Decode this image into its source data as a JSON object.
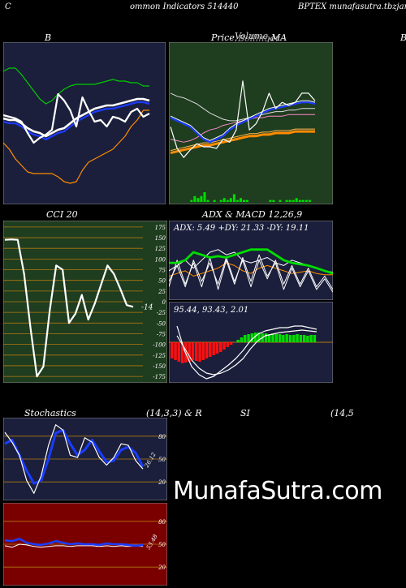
{
  "header": {
    "left": "C",
    "center": "ommon  Indicators 514440",
    "right": "BPTEX  munafasutra.tbzjar.com"
  },
  "titles": {
    "bollinger": "B",
    "price": "Price,",
    "price_overlap": "Volume,",
    "price_overlap2": "Bollinger",
    "ma": "MA",
    "cut_right": "B",
    "cci": "CCI 20",
    "adx_macd": "ADX  & MACD 12,26,9",
    "stoch": "Stochastics",
    "stoch_params": "(14,3,3) & R",
    "rsi": "SI",
    "rsi_params": "(14,5"
  },
  "watermark": "MunafaSutra.com",
  "colors": {
    "bg": "#000000",
    "navy_panel": "#1b1f3b",
    "green_panel": "#1f3d1f",
    "red_panel": "#7a0000",
    "orange": "#ff8c00",
    "blue": "#1a3cff",
    "green": "#00dd00",
    "white": "#ffffff"
  },
  "chart_data": [
    {
      "type": "line",
      "name": "bollinger",
      "series": [
        {
          "values": [
            5,
            4,
            3,
            1,
            -6,
            -12,
            -9,
            -7,
            -4,
            18,
            14,
            8,
            -2,
            16,
            8,
            1,
            2,
            -2,
            4,
            3,
            1,
            7,
            9,
            4,
            6
          ]
        },
        {
          "values": [
            1,
            0,
            0,
            -2,
            -5,
            -7,
            -8,
            -10,
            -8,
            -6,
            -5,
            -2,
            1,
            3,
            5,
            7,
            8,
            9,
            9,
            10,
            11,
            12,
            13,
            13,
            12
          ]
        },
        {
          "values": [
            3,
            2,
            2,
            0,
            -3,
            -5,
            -6,
            -8,
            -6,
            -4,
            -3,
            0,
            3,
            5,
            7,
            9,
            10,
            11,
            11,
            12,
            13,
            14,
            15,
            15,
            14
          ]
        },
        {
          "values": [
            32,
            34,
            34,
            30,
            25,
            20,
            15,
            12,
            14,
            18,
            21,
            23,
            24,
            24,
            24,
            24,
            25,
            26,
            27,
            26,
            26,
            25,
            25,
            23,
            23
          ]
        },
        {
          "values": [
            -12,
            -16,
            -22,
            -26,
            -30,
            -31,
            -31,
            -31,
            -31,
            -33,
            -36,
            -37,
            -36,
            -29,
            -24,
            -22,
            -20,
            -18,
            -16,
            -12,
            -8,
            -2,
            2,
            8,
            8
          ]
        }
      ]
    },
    {
      "type": "line",
      "name": "price_ma",
      "series": [
        {
          "values": [
            30,
            16,
            10,
            15,
            19,
            17,
            17,
            16,
            22,
            20,
            28,
            60,
            28,
            32,
            40,
            52,
            42,
            46,
            44,
            46,
            52,
            52,
            47
          ]
        },
        {
          "values": [
            36,
            34,
            32,
            30,
            26,
            22,
            20,
            22,
            24,
            28,
            31,
            33,
            35,
            37,
            39,
            41,
            42,
            43,
            44,
            45,
            46,
            46,
            45
          ]
        },
        {
          "values": [
            36,
            34,
            32,
            30,
            26,
            22,
            20,
            22,
            24,
            28,
            31,
            33,
            35,
            37,
            39,
            41,
            42,
            43,
            44,
            45,
            46,
            46,
            45
          ]
        },
        {
          "values": [
            52,
            50,
            49,
            47,
            45,
            42,
            39,
            37,
            35,
            34,
            34,
            35,
            36,
            37,
            38,
            39,
            40,
            40,
            41,
            41,
            42,
            42,
            42
          ]
        },
        {
          "values": [
            13,
            14,
            15,
            16,
            17,
            18,
            18,
            19,
            20,
            21,
            22,
            23,
            24,
            24,
            25,
            25,
            26,
            26,
            26,
            27,
            27,
            27,
            27
          ]
        },
        {
          "values": [
            22,
            21,
            20,
            21,
            23,
            26,
            28,
            29,
            31,
            32,
            33,
            34,
            35,
            36,
            36,
            37,
            37,
            37,
            38,
            38,
            38,
            38,
            38
          ]
        }
      ],
      "volume": [
        0,
        0,
        0,
        0,
        0,
        0,
        1,
        3,
        2,
        3,
        5,
        1,
        0,
        1,
        0,
        1,
        2,
        1,
        2,
        4,
        1,
        2,
        1,
        1,
        0,
        0,
        0,
        0,
        0,
        0,
        1,
        1,
        0,
        1,
        0,
        1,
        1,
        1,
        2,
        1,
        1,
        1,
        1,
        0
      ]
    },
    {
      "type": "line",
      "name": "cci",
      "y_ticks": [
        175,
        150,
        125,
        100,
        75,
        50,
        25,
        0,
        -25,
        -50,
        -75,
        -100,
        -125,
        -150,
        -175
      ],
      "ylim": [
        -190,
        190
      ],
      "values": [
        145,
        146,
        145,
        65,
        -62,
        -175,
        -152,
        -20,
        85,
        75,
        -50,
        -28,
        16,
        -42,
        -5,
        40,
        85,
        65,
        30,
        -8,
        -12
      ],
      "last_label": "-14"
    },
    {
      "type": "line",
      "name": "adx",
      "label_adx": "ADX: 5.49",
      "label_dip": "+DY: 21.33",
      "label_dim": "-DY: 19.11",
      "y_range": [
        0,
        50
      ],
      "series": [
        {
          "values": [
            28,
            28,
            30,
            36,
            34,
            32,
            33,
            32,
            34,
            36,
            38,
            38,
            38,
            34,
            30,
            28,
            27,
            26,
            24,
            22,
            20
          ]
        },
        {
          "values": [
            22,
            26,
            30,
            24,
            30,
            36,
            38,
            34,
            36,
            30,
            28,
            30,
            32,
            28,
            26,
            30,
            28,
            26,
            24,
            22,
            21
          ]
        },
        {
          "values": [
            18,
            20,
            22,
            18,
            20,
            22,
            24,
            28,
            26,
            22,
            20,
            24,
            26,
            24,
            22,
            20,
            21,
            22,
            20,
            19,
            19
          ]
        },
        {
          "values": [
            10,
            30,
            12,
            28,
            10,
            32,
            8,
            30,
            12,
            32,
            14,
            34,
            18,
            28,
            8,
            24,
            10,
            22,
            8,
            16,
            6
          ]
        },
        {
          "values": [
            14,
            26,
            10,
            30,
            14,
            28,
            12,
            32,
            14,
            30,
            10,
            30,
            16,
            30,
            12,
            26,
            12,
            24,
            10,
            18,
            8
          ]
        }
      ]
    },
    {
      "type": "bar",
      "name": "macd",
      "label_macd": "95.44,",
      "label_signal": "93.43,",
      "label_hist": "2.01",
      "macd_line": [
        20,
        -10,
        -30,
        -40,
        -45,
        -42,
        -35,
        -28,
        -20,
        -10,
        2,
        10,
        14,
        16,
        18,
        18,
        20,
        20,
        18,
        16
      ],
      "signal_line": [
        10,
        -5,
        -20,
        -30,
        -36,
        -38,
        -36,
        -32,
        -26,
        -18,
        -6,
        4,
        10,
        12,
        14,
        15,
        16,
        17,
        16,
        15
      ],
      "histogram": [
        -20,
        -22,
        -24,
        -26,
        -25,
        -24,
        -22,
        -23,
        -24,
        -22,
        -20,
        -18,
        -16,
        -14,
        -12,
        -9,
        -6,
        -3,
        0,
        3,
        6,
        9,
        10,
        11,
        12,
        12,
        11,
        11,
        10,
        11,
        10,
        10,
        9,
        10,
        9,
        9,
        10,
        9,
        9,
        8,
        9,
        9
      ]
    },
    {
      "type": "line",
      "name": "stochastics",
      "y_ticks": [
        80,
        50,
        20
      ],
      "ylim": [
        0,
        100
      ],
      "k_values": [
        85,
        72,
        55,
        22,
        5,
        28,
        68,
        95,
        88,
        55,
        52,
        78,
        72,
        52,
        42,
        52,
        70,
        68,
        48,
        37
      ],
      "d_values": [
        70,
        75,
        55,
        35,
        18,
        22,
        50,
        84,
        88,
        70,
        55,
        62,
        75,
        60,
        46,
        48,
        62,
        66,
        58,
        40
      ],
      "last_label": "26.12"
    },
    {
      "type": "line",
      "name": "rsi",
      "y_ticks": [
        80,
        50,
        20
      ],
      "ylim": [
        0,
        100
      ],
      "values": [
        55,
        54,
        57,
        52,
        50,
        49,
        51,
        54,
        52,
        50,
        51,
        50,
        50,
        49,
        51,
        50,
        50,
        49,
        48,
        49
      ],
      "mrsi_values": [
        48,
        46,
        50,
        49,
        47,
        46,
        47,
        48,
        48,
        47,
        48,
        48,
        48,
        47,
        48,
        47,
        48,
        47,
        48,
        47
      ],
      "last_label": "53.48"
    }
  ]
}
